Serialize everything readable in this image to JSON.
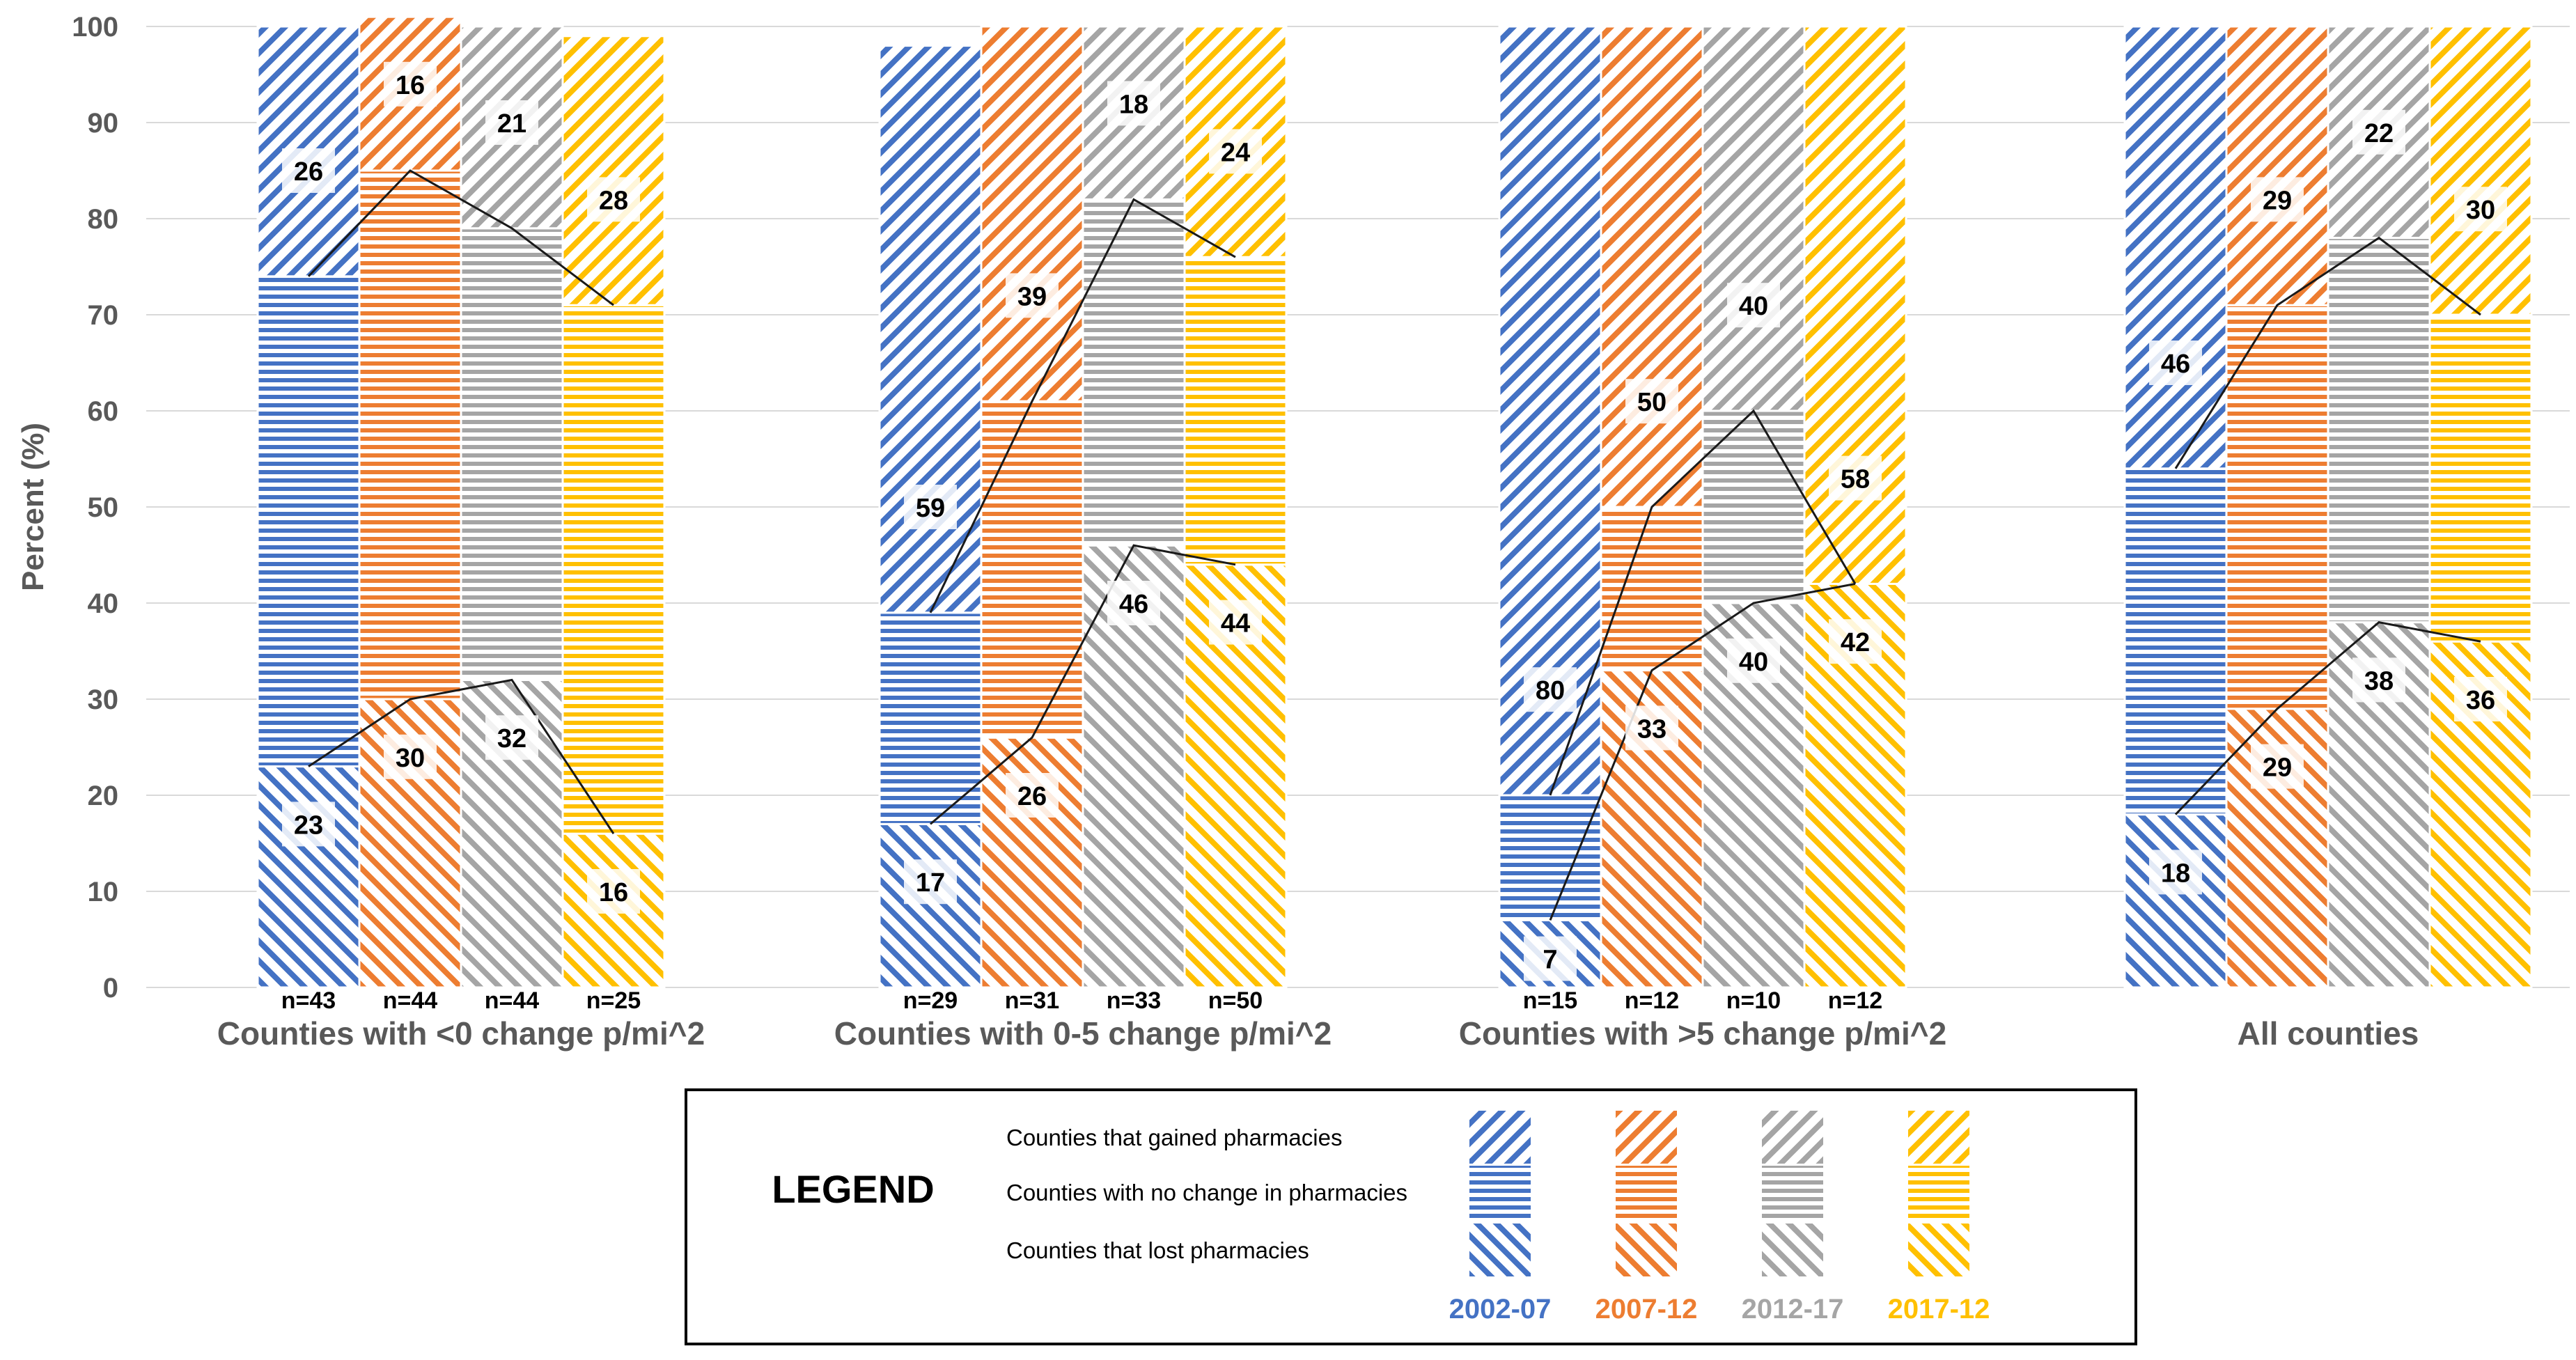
{
  "chart_data": {
    "type": "bar",
    "subtype": "stacked-100-percent",
    "ylabel": "Percent (%)",
    "ylim": [
      0,
      100
    ],
    "yticks": [
      0,
      10,
      20,
      30,
      40,
      50,
      60,
      70,
      80,
      90,
      100
    ],
    "grid": true,
    "categories": [
      "Counties with <0 change p/mi^2",
      "Counties with 0-5 change p/mi^2",
      "Counties with >5 change p/mi^2",
      "All counties"
    ],
    "periods": [
      {
        "name": "2002-07",
        "color": "#4472C4"
      },
      {
        "name": "2007-12",
        "color": "#ED7D31"
      },
      {
        "name": "2012-17",
        "color": "#A5A5A5"
      },
      {
        "name": "2017-12",
        "color": "#FFC000"
      }
    ],
    "segments": [
      "lost",
      "no_change",
      "gained"
    ],
    "groups": [
      {
        "bars": [
          {
            "lost": 23,
            "no_change": 51,
            "gained": 26,
            "n": "n=43"
          },
          {
            "lost": 30,
            "no_change": 55,
            "gained": 16,
            "n": "n=44"
          },
          {
            "lost": 32,
            "no_change": 47,
            "gained": 21,
            "n": "n=44"
          },
          {
            "lost": 16,
            "no_change": 55,
            "gained": 28,
            "n": "n=25"
          }
        ]
      },
      {
        "bars": [
          {
            "lost": 17,
            "no_change": 22,
            "gained": 59,
            "n": "n=29"
          },
          {
            "lost": 26,
            "no_change": 35,
            "gained": 39,
            "n": "n=31"
          },
          {
            "lost": 46,
            "no_change": 36,
            "gained": 18,
            "n": "n=33"
          },
          {
            "lost": 44,
            "no_change": 32,
            "gained": 24,
            "n": "n=50"
          }
        ]
      },
      {
        "bars": [
          {
            "lost": 7,
            "no_change": 13,
            "gained": 80,
            "n": "n=15"
          },
          {
            "lost": 33,
            "no_change": 17,
            "gained": 50,
            "n": "n=12"
          },
          {
            "lost": 40,
            "no_change": 20,
            "gained": 40,
            "n": "n=10"
          },
          {
            "lost": 42,
            "no_change": 0,
            "gained": 58,
            "n": "n=12"
          }
        ]
      },
      {
        "bars": [
          {
            "lost": 18,
            "no_change": 36,
            "gained": 46,
            "n": ""
          },
          {
            "lost": 29,
            "no_change": 42,
            "gained": 29,
            "n": ""
          },
          {
            "lost": 38,
            "no_change": 40,
            "gained": 22,
            "n": ""
          },
          {
            "lost": 36,
            "no_change": 34,
            "gained": 30,
            "n": ""
          }
        ]
      }
    ],
    "legend": {
      "title": "LEGEND",
      "placement": "bottom-center",
      "rows": [
        {
          "key": "gained",
          "label": "Counties that gained pharmacies"
        },
        {
          "key": "no_change",
          "label": "Counties with no change in pharmacies"
        },
        {
          "key": "lost",
          "label": "Counties that lost pharmacies"
        }
      ]
    }
  }
}
